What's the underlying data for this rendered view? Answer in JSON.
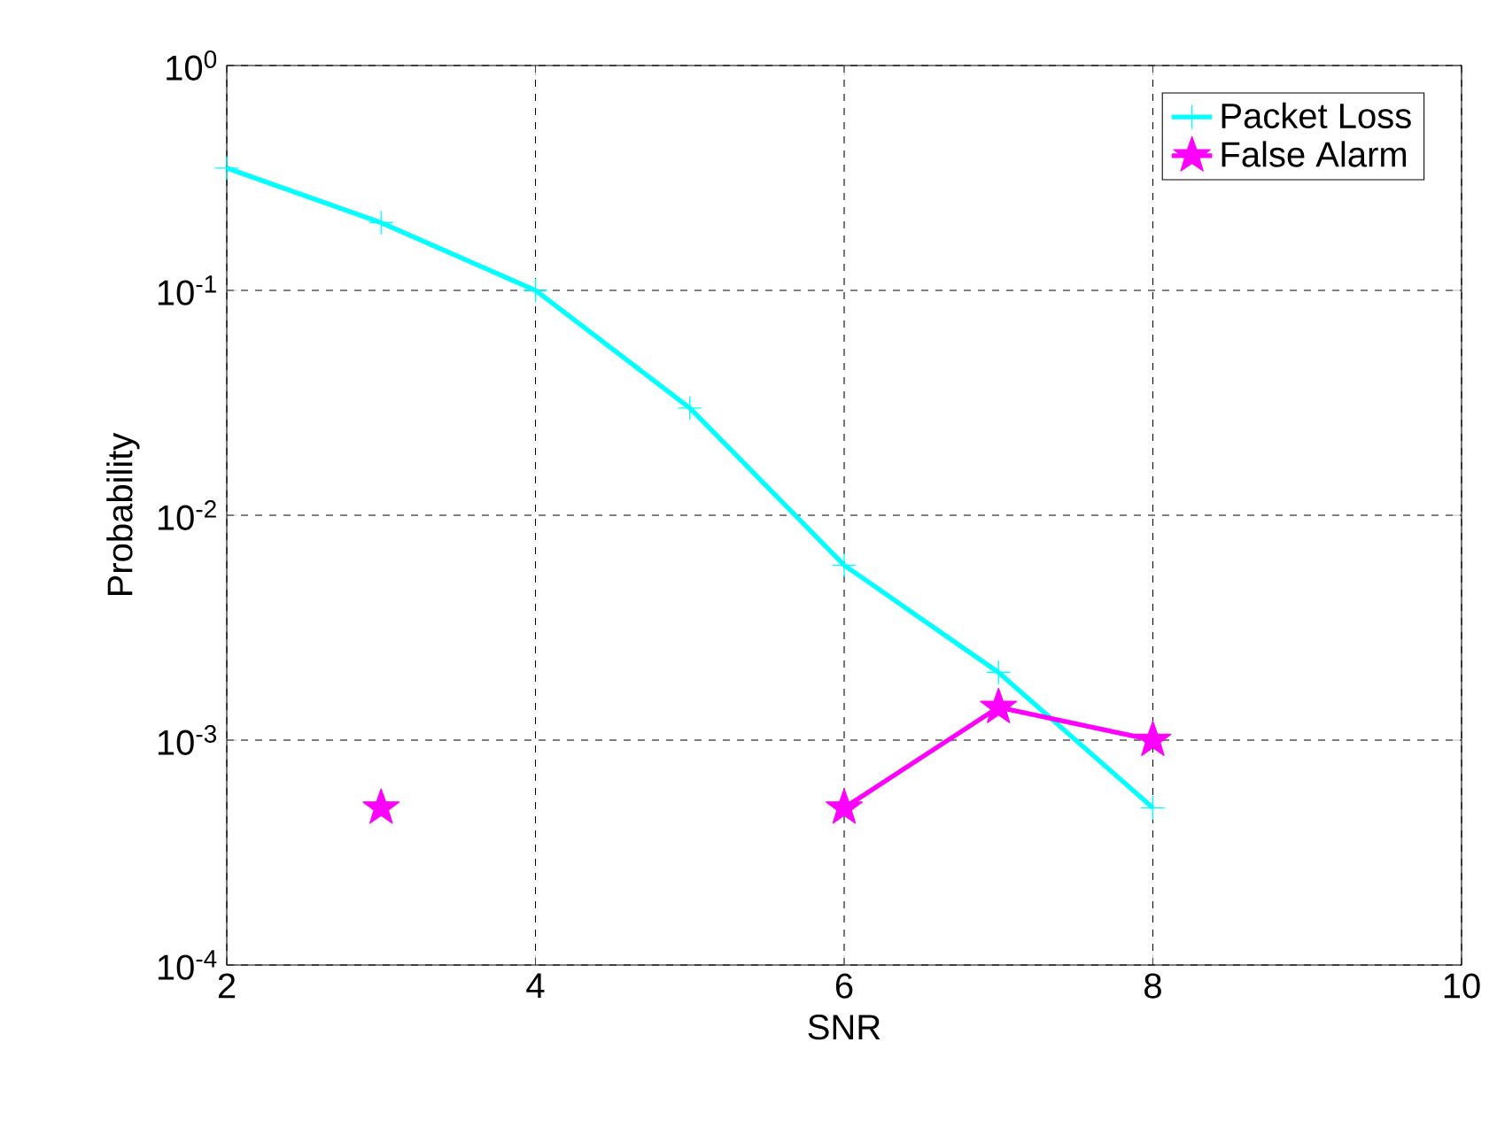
{
  "chart_data": {
    "type": "line",
    "xlabel": "SNR",
    "ylabel": "Probability",
    "xlim": [
      2,
      10
    ],
    "xticks": [
      2,
      4,
      6,
      8,
      10
    ],
    "ylim": [
      0.0001,
      1
    ],
    "log": "y",
    "yticks": [
      {
        "value": 0.0001,
        "label": "10$^{-4}$"
      },
      {
        "value": 0.001,
        "label": "10$^{-3}$"
      },
      {
        "value": 0.01,
        "label": "10$^{-2}$"
      },
      {
        "value": 0.1,
        "label": "10$^{-1}$"
      },
      {
        "value": 1,
        "label": "10$^{0}$"
      }
    ],
    "grid": true,
    "legend": "top right",
    "line_style": "solid",
    "series": [
      {
        "name": "Packet Loss",
        "color": "#00ffff",
        "marker": "cross",
        "x": [
          2,
          3,
          4,
          5,
          6,
          7,
          8
        ],
        "values": [
          0.35,
          0.2,
          0.1,
          0.03,
          0.006,
          0.002,
          0.0005
        ]
      },
      {
        "name": "False Alarm",
        "color": "#ff00ff",
        "marker": "star",
        "x": [
          3,
          4,
          5,
          6,
          7,
          8
        ],
        "values": [
          0.0005,
          null,
          null,
          0.0005,
          0.0014,
          0.001
        ]
      }
    ]
  }
}
